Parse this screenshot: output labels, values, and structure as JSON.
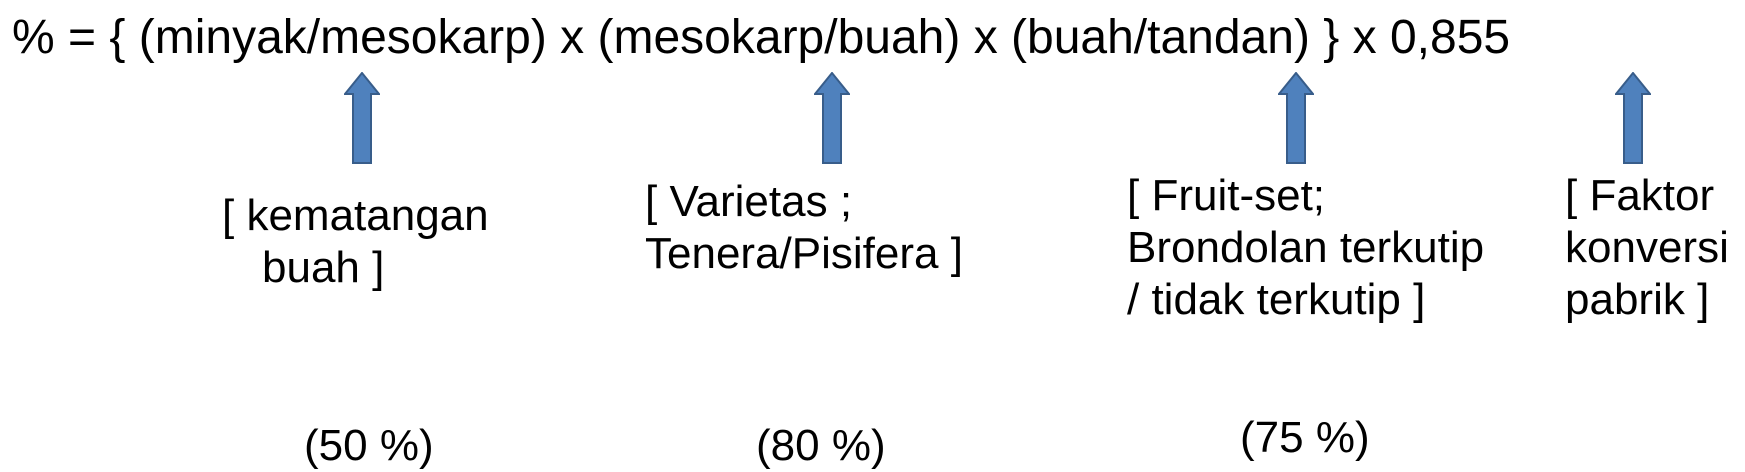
{
  "formula": "% = { (minyak/mesokarp) x (mesokarp/buah) x (buah/tandan) } x 0,855",
  "arrow_color": "#4F81BD",
  "arrow_outline": "#385D8A",
  "annotations": [
    {
      "lines": [
        "[ kematangan",
        "buah ]"
      ],
      "percent": "(50 %)"
    },
    {
      "lines": [
        "[ Varietas ;",
        "Tenera/Pisifera ]"
      ],
      "percent": "(80 %)"
    },
    {
      "lines": [
        "[ Fruit-set;",
        "Brondolan terkutip",
        "/ tidak terkutip ]"
      ],
      "percent": "(75 %)"
    },
    {
      "lines": [
        "[ Faktor",
        "konversi",
        "pabrik ]"
      ],
      "percent": ""
    }
  ]
}
